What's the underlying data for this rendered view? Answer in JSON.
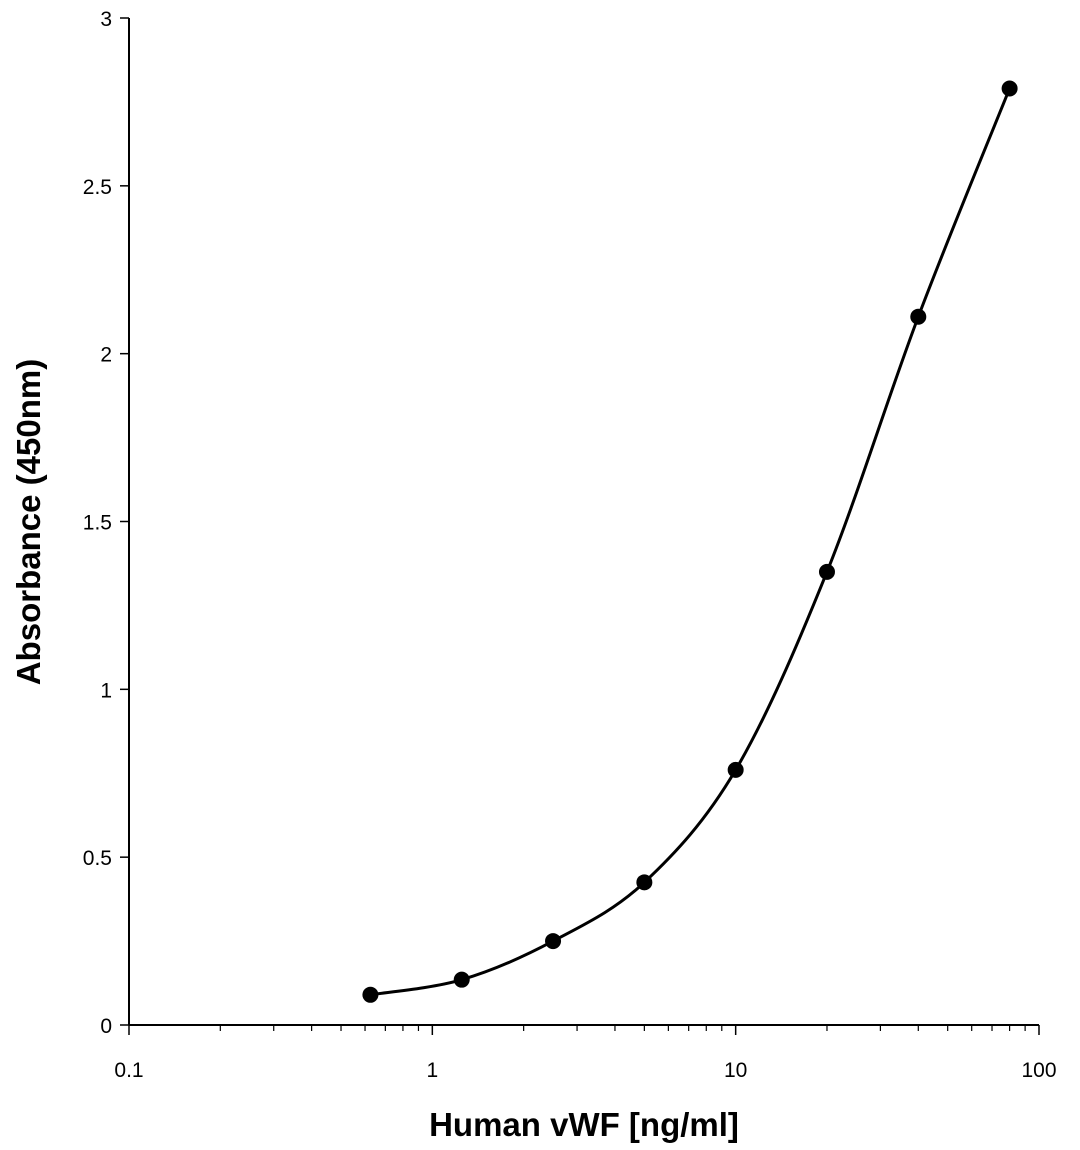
{
  "chart_data": {
    "type": "scatter",
    "title": "",
    "xlabel": "Human vWF [ng/ml]",
    "ylabel": "Absorbance (450nm)",
    "x_scale": "log",
    "xlim": [
      0.1,
      100
    ],
    "ylim": [
      0,
      3
    ],
    "x_ticks": [
      "0.1",
      "1",
      "10",
      "100"
    ],
    "y_ticks": [
      "0",
      "0.5",
      "1",
      "1.5",
      "2",
      "2.5",
      "3"
    ],
    "grid": false,
    "legend": "none",
    "line_color": "#000000",
    "marker_color": "#000000",
    "smooth_line": true,
    "series": [
      {
        "x": [
          0.625,
          1.25,
          2.5,
          5,
          10,
          20,
          40,
          80
        ],
        "y": [
          0.09,
          0.135,
          0.25,
          0.425,
          0.76,
          1.35,
          2.11,
          2.79
        ]
      }
    ]
  }
}
